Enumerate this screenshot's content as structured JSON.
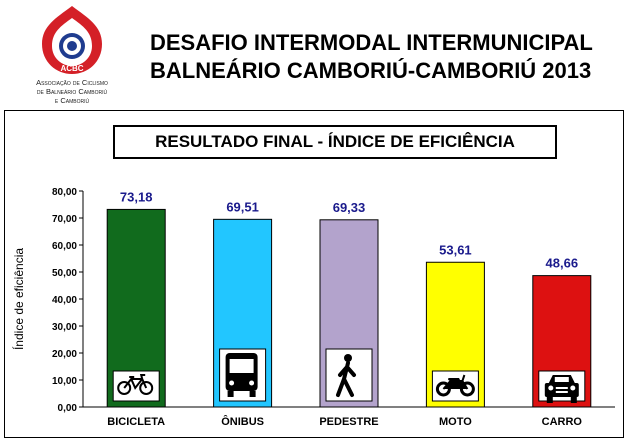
{
  "header": {
    "title_line1": "DESAFIO INTERMODAL INTERMUNICIPAL",
    "title_line2": "BALNEÁRIO CAMBORIÚ-CAMBORIÚ 2013",
    "logo": {
      "acronym": "ACBC",
      "line1": "Associação de Ciclismo",
      "line2": "de Balneário Camboriú",
      "line3": "e Camboriú",
      "colors": {
        "red": "#d42027",
        "blue": "#1f3c8f"
      }
    }
  },
  "chart_data": {
    "type": "bar",
    "title": "RESULTADO FINAL  - ÍNDICE DE EFICIÊNCIA",
    "ylabel": "Índice de eficiência",
    "xlabel": "",
    "ylim": [
      0,
      80
    ],
    "yticks": [
      "0,00",
      "10,00",
      "20,00",
      "30,00",
      "40,00",
      "50,00",
      "60,00",
      "70,00",
      "80,00"
    ],
    "categories": [
      "BICICLETA",
      "ÔNIBUS",
      "PEDESTRE",
      "MOTO",
      "CARRO"
    ],
    "values": [
      73.18,
      69.51,
      69.33,
      53.61,
      48.66
    ],
    "value_labels": [
      "73,18",
      "69,51",
      "69,33",
      "53,61",
      "48,66"
    ],
    "colors": [
      "#116b1d",
      "#22c6ff",
      "#b3a3cc",
      "#ffff00",
      "#dd1111"
    ],
    "icons": [
      "bicycle-icon",
      "bus-icon",
      "pedestrian-icon",
      "motorcycle-icon",
      "car-icon"
    ],
    "value_label_color": "#1a1a8c",
    "grid": false
  }
}
